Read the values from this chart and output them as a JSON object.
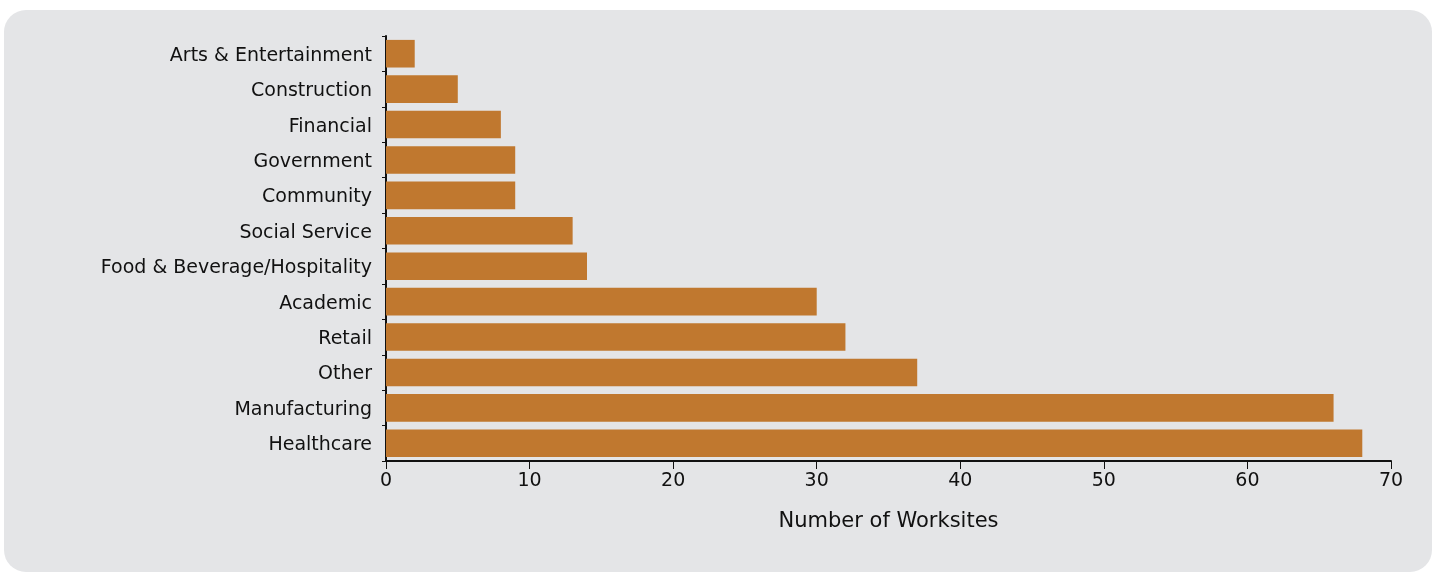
{
  "chart_data": {
    "type": "bar",
    "orientation": "horizontal",
    "xlabel": "Number of Worksites",
    "categories": [
      "Arts & Entertainment",
      "Construction",
      "Financial",
      "Government",
      "Community",
      "Social Service",
      "Food & Beverage/Hospitality",
      "Academic",
      "Retail",
      "Other",
      "Manufacturing",
      "Healthcare"
    ],
    "values": [
      2,
      5,
      8,
      9,
      9,
      13,
      14,
      30,
      32,
      37,
      66,
      68
    ],
    "color": "#c0782f",
    "xlim": [
      0,
      70
    ],
    "xticks": [
      0,
      10,
      20,
      30,
      40,
      50,
      60,
      70
    ],
    "grid": false
  }
}
